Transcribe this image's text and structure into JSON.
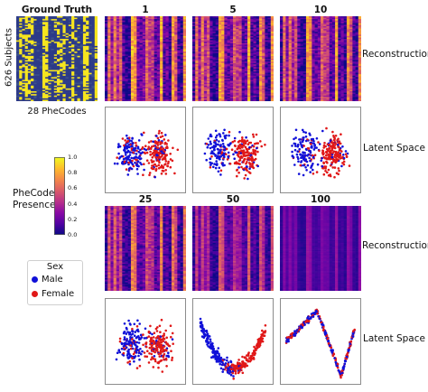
{
  "figure": {
    "ground_truth_title": "Ground Truth",
    "y_axis_label": "626 Subjects",
    "x_axis_label": "28 PheCodes",
    "row_label_reconstruction": "Reconstruction",
    "row_label_latent": "Latent Space",
    "colorbar_label_line1": "PheCode",
    "colorbar_label_line2": "Presence",
    "legend_title": "Sex",
    "legend_male": "Male",
    "legend_female": "Female",
    "colors": {
      "male": "#1010d8",
      "female": "#e01818",
      "frame": "#8c8c8c"
    }
  },
  "chart_data": {
    "type": "heatmap",
    "colormap": "plasma",
    "colorbar": {
      "range": [
        0.0,
        1.0
      ],
      "ticks": [
        "0.0",
        "0.2",
        "0.4",
        "0.6",
        "0.8",
        "1.0"
      ]
    },
    "ground_truth": {
      "rows": 626,
      "columns": 28
    },
    "panels": [
      {
        "label": "1"
      },
      {
        "label": "5"
      },
      {
        "label": "10"
      },
      {
        "label": "25"
      },
      {
        "label": "50"
      },
      {
        "label": "100"
      }
    ],
    "latent_scatter": {
      "type": "scatter",
      "series": [
        {
          "name": "Male",
          "color": "#1010d8"
        },
        {
          "name": "Female",
          "color": "#e01818"
        }
      ]
    }
  }
}
